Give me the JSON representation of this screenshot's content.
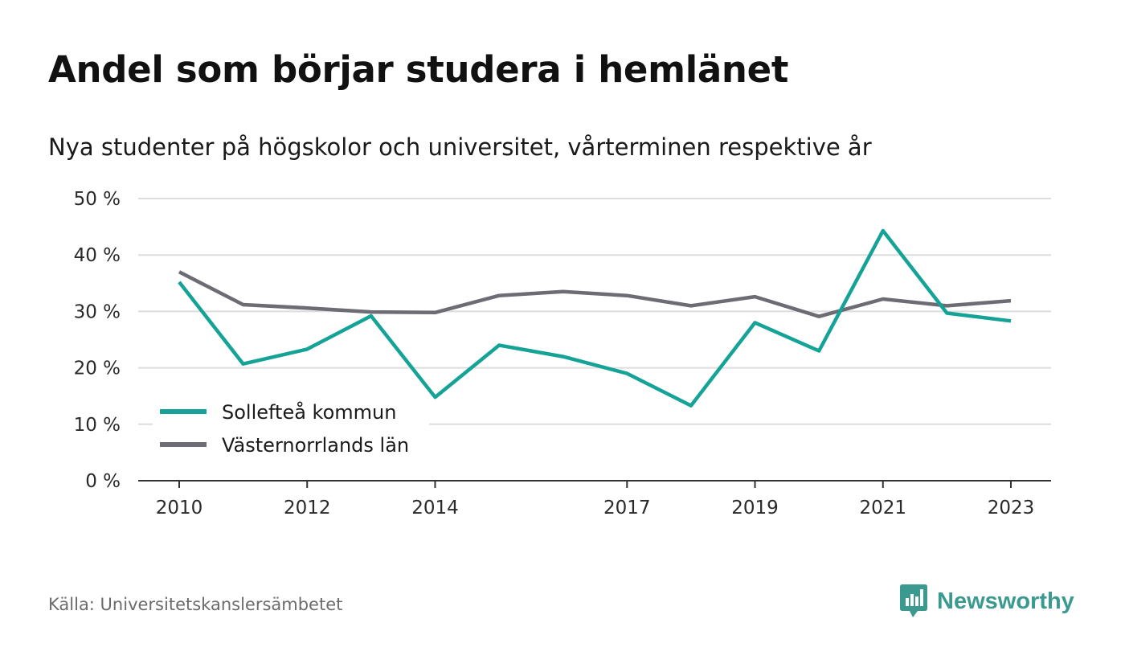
{
  "title": "Andel som börjar studera i hemlänet",
  "subtitle": "Nya studenter på högskolor och universitet, vårterminen respektive år",
  "source": "Källa: Universitetskanslersämbetet",
  "brand": {
    "name": "Newsworthy",
    "icon": "newsworthy-logo-icon",
    "color": "#3b9a8f"
  },
  "chart_data": {
    "type": "line",
    "x": [
      2010,
      2011,
      2012,
      2013,
      2014,
      2015,
      2016,
      2017,
      2018,
      2019,
      2020,
      2021,
      2022,
      2023
    ],
    "x_tick_labels": [
      "2010",
      "2012",
      "2014",
      "2017",
      "2019",
      "2021",
      "2023"
    ],
    "y_tick_labels": [
      "0 %",
      "10 %",
      "20 %",
      "30 %",
      "40 %",
      "50 %"
    ],
    "ylim": [
      0,
      50
    ],
    "grid": true,
    "legend_position": "bottom-left",
    "series": [
      {
        "name": "Sollefteå kommun",
        "color": "#14a396",
        "values": [
          35.2,
          20.7,
          23.3,
          29.2,
          14.8,
          24.0,
          22.0,
          19.0,
          13.3,
          28.0,
          23.0,
          44.3,
          29.7,
          28.3
        ]
      },
      {
        "name": "Västernorrlands län",
        "color": "#6d6b73",
        "values": [
          37.0,
          31.2,
          30.6,
          29.9,
          29.8,
          32.8,
          33.5,
          32.8,
          31.0,
          32.6,
          29.1,
          32.2,
          31.0,
          31.9
        ]
      }
    ]
  }
}
